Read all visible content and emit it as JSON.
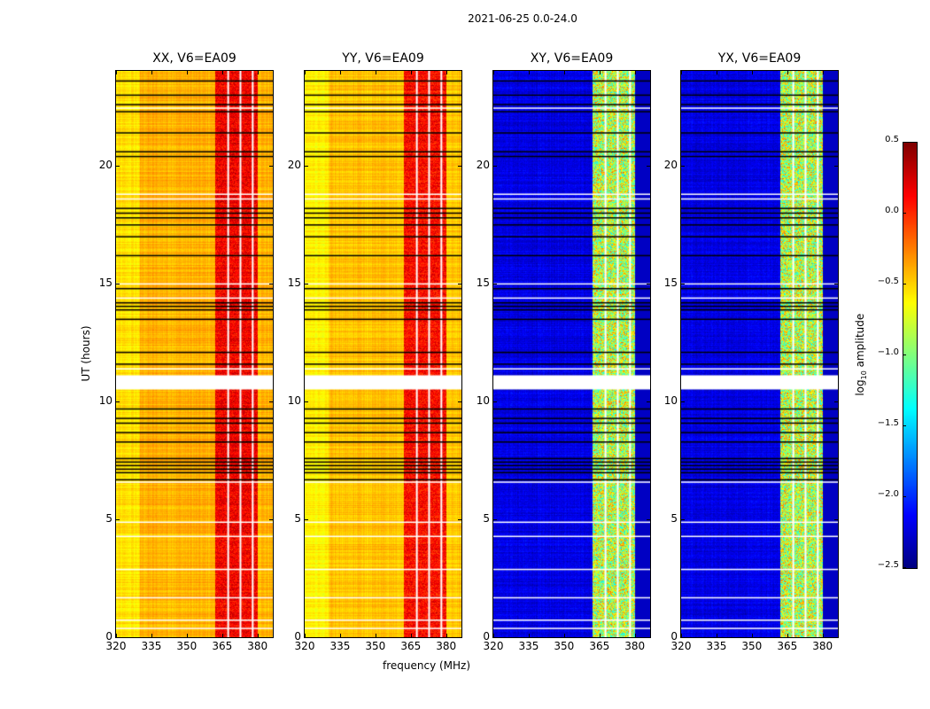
{
  "chart_data": {
    "type": "heatmap",
    "title": "2021-06-25 0.0-24.0",
    "xlabel": "frequency (MHz)",
    "ylabel": "UT (hours)",
    "xlim": [
      320,
      386.5
    ],
    "ylim": [
      0,
      24
    ],
    "xticks": [
      "320",
      "335",
      "350",
      "365",
      "380"
    ],
    "xtick_values": [
      320,
      335,
      350,
      365,
      380
    ],
    "yticks": [
      "0",
      "5",
      "10",
      "15",
      "20"
    ],
    "ytick_values": [
      0,
      5,
      10,
      15,
      20
    ],
    "colorbar": {
      "label": "log",
      "label_sub": "10",
      "label_rest": " amplitude",
      "range": [
        -2.5,
        0.5
      ],
      "ticks": [
        "0.5",
        "0.0",
        "−0.5",
        "−1.0",
        "−1.5",
        "−2.0",
        "−2.5"
      ],
      "tick_values": [
        0.5,
        0.0,
        -0.5,
        -1.0,
        -1.5,
        -2.0,
        -2.5
      ],
      "colormap": "jet"
    },
    "panels": [
      {
        "title": "XX, V6=EA09",
        "background_log_amp": -0.4,
        "rfi_band_log_amp": 0.15
      },
      {
        "title": "YY, V6=EA09",
        "background_log_amp": -0.45,
        "rfi_band_log_amp": 0.1
      },
      {
        "title": "XY, V6=EA09",
        "background_log_amp": -2.2,
        "rfi_band_log_amp": -0.8
      },
      {
        "title": "YX, V6=EA09",
        "background_log_amp": -2.2,
        "rfi_band_log_amp": -0.8
      }
    ],
    "rfi_band_mhz": [
      362,
      380
    ],
    "flagged_channels_mhz": [
      367.2,
      372.4,
      377.6
    ],
    "flagged_block_hours": [
      10.5,
      11.1
    ],
    "flagged_rows_black_hours": [
      23.6,
      23.0,
      22.6,
      22.3,
      21.4,
      20.6,
      20.4,
      18.2,
      18.0,
      17.8,
      17.5,
      17.0,
      16.2,
      14.8,
      14.2,
      14.05,
      13.9,
      13.5,
      12.1,
      11.6,
      9.7,
      9.3,
      9.1,
      8.7,
      8.3,
      7.6,
      7.45,
      7.3,
      7.15,
      7.0,
      6.7
    ],
    "flagged_rows_white_hours": [
      22.45,
      18.8,
      18.6,
      15.0,
      14.4,
      11.4,
      6.6,
      4.9,
      4.3,
      2.9,
      1.7,
      0.75,
      0.4
    ]
  }
}
